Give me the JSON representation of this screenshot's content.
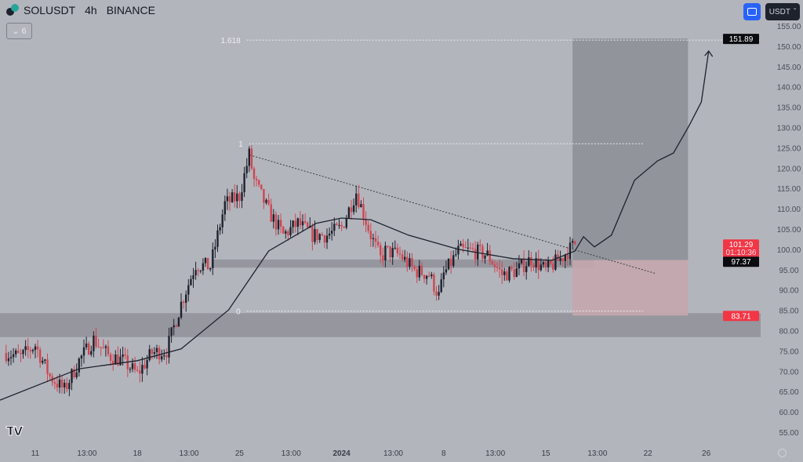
{
  "header": {
    "symbol": "SOLUSDT",
    "interval": "4h",
    "exchange": "BINANCE",
    "indicator_count": "6",
    "currency": "USDT"
  },
  "colors": {
    "background": "#b3b5bd",
    "up": "#1e222d",
    "down": "#d04550",
    "band": "#8f9199",
    "profit_zone": "#8c8e96",
    "loss_zone": "#c4a7ad",
    "label_red": "#f23645",
    "label_black": "#0b0c0f"
  },
  "chart_data": {
    "type": "candlestick",
    "title": "SOLUSDT 4h BINANCE",
    "ylim": [
      50,
      157
    ],
    "y_ticks": [
      "155.00",
      "150.00",
      "145.00",
      "140.00",
      "135.00",
      "130.00",
      "125.00",
      "120.00",
      "115.00",
      "110.00",
      "105.00",
      "100.00",
      "95.00",
      "90.00",
      "85.00",
      "80.00",
      "75.00",
      "70.00",
      "65.00",
      "60.00",
      "55.00"
    ],
    "x_ticks": [
      {
        "label": "11",
        "t": "2023-12-11T00:00"
      },
      {
        "label": "13:00",
        "t": "2023-12-14T13:00"
      },
      {
        "label": "18",
        "t": "2023-12-18T00:00"
      },
      {
        "label": "13:00",
        "t": "2023-12-21T13:00"
      },
      {
        "label": "25",
        "t": "2023-12-25T00:00"
      },
      {
        "label": "13:00",
        "t": "2023-12-28T13:00"
      },
      {
        "label": "2024",
        "t": "2024-01-01T00:00",
        "bold": true
      },
      {
        "label": "13:00",
        "t": "2024-01-04T13:00"
      },
      {
        "label": "8",
        "t": "2024-01-08T00:00"
      },
      {
        "label": "13:00",
        "t": "2024-01-11T13:00"
      },
      {
        "label": "15",
        "t": "2024-01-15T00:00"
      },
      {
        "label": "13:00",
        "t": "2024-01-18T13:00"
      },
      {
        "label": "22",
        "t": "2024-01-22T00:00"
      },
      {
        "label": "26",
        "t": "2024-01-26T00:00"
      }
    ],
    "daily_closes": [
      [
        "2023-12-09T00:00",
        74.5
      ],
      [
        "2023-12-10T00:00",
        73.5
      ],
      [
        "2023-12-11T00:00",
        76.4
      ],
      [
        "2023-12-12T00:00",
        68.7
      ],
      [
        "2023-12-13T00:00",
        65.4
      ],
      [
        "2023-12-14T00:00",
        72.6
      ],
      [
        "2023-12-15T00:00",
        77.8
      ],
      [
        "2023-12-16T00:00",
        73.9
      ],
      [
        "2023-12-17T00:00",
        72.6
      ],
      [
        "2023-12-18T00:00",
        69.3
      ],
      [
        "2023-12-19T00:00",
        74.5
      ],
      [
        "2023-12-20T00:00",
        75.1
      ],
      [
        "2023-12-21T00:00",
        86.7
      ],
      [
        "2023-12-22T00:00",
        96.3
      ],
      [
        "2023-12-23T00:00",
        95.7
      ],
      [
        "2023-12-24T00:00",
        111.2
      ],
      [
        "2023-12-25T00:00",
        113.1
      ],
      [
        "2023-12-25T16:00",
        123.3
      ],
      [
        "2023-12-26T00:00",
        117.0
      ],
      [
        "2023-12-27T00:00",
        109.3
      ],
      [
        "2023-12-28T00:00",
        103.5
      ],
      [
        "2023-12-29T00:00",
        106.4
      ],
      [
        "2023-12-30T00:00",
        103.5
      ],
      [
        "2023-12-31T00:00",
        103.5
      ],
      [
        "2024-01-01T00:00",
        105.4
      ],
      [
        "2024-01-02T00:00",
        114.1
      ],
      [
        "2024-01-03T00:00",
        103.5
      ],
      [
        "2024-01-03T16:00",
        97.7
      ],
      [
        "2024-01-04T00:00",
        99.6
      ],
      [
        "2024-01-05T00:00",
        98.6
      ],
      [
        "2024-01-06T00:00",
        94.8
      ],
      [
        "2024-01-07T00:00",
        93.8
      ],
      [
        "2024-01-07T16:00",
        88.5
      ],
      [
        "2024-01-08T00:00",
        93.8
      ],
      [
        "2024-01-09T00:00",
        99.6
      ],
      [
        "2024-01-10T00:00",
        99.6
      ],
      [
        "2024-01-11T00:00",
        98.6
      ],
      [
        "2024-01-12T00:00",
        93.8
      ],
      [
        "2024-01-13T00:00",
        94.8
      ],
      [
        "2024-01-14T00:00",
        97.7
      ],
      [
        "2024-01-15T00:00",
        94.8
      ],
      [
        "2024-01-16T00:00",
        97.7
      ],
      [
        "2024-01-17T00:00",
        101.29
      ]
    ],
    "moving_average": [
      [
        "2023-12-08T14:00",
        62.9
      ],
      [
        "2023-12-14T00:00",
        70.6
      ],
      [
        "2023-12-18T00:00",
        72.6
      ],
      [
        "2023-12-21T00:00",
        75.5
      ],
      [
        "2023-12-24T06:00",
        85.1
      ],
      [
        "2023-12-27T00:00",
        99.6
      ],
      [
        "2023-12-30T06:00",
        106.4
      ],
      [
        "2024-01-01T00:00",
        107.7
      ],
      [
        "2024-01-03T00:00",
        107.3
      ],
      [
        "2024-01-05T14:00",
        103.5
      ],
      [
        "2024-01-09T00:00",
        100.0
      ],
      [
        "2024-01-12T18:00",
        97.7
      ],
      [
        "2024-01-15T10:00",
        97.3
      ],
      [
        "2024-01-17T00:00",
        99.6
      ]
    ],
    "projection_path": [
      [
        "2024-01-17T00:00",
        99.6
      ],
      [
        "2024-01-17T14:00",
        103.1
      ],
      [
        "2024-01-18T08:00",
        100.6
      ],
      [
        "2024-01-19T12:00",
        103.5
      ],
      [
        "2024-01-21T02:00",
        117.0
      ],
      [
        "2024-01-22T16:00",
        121.8
      ],
      [
        "2024-01-23T18:00",
        123.7
      ],
      [
        "2024-01-24T20:00",
        130.5
      ],
      [
        "2024-01-25T16:00",
        136.3
      ],
      [
        "2024-01-26T04:00",
        148.8
      ]
    ],
    "fibonacci": [
      {
        "label": "1.618",
        "price": 151.5,
        "from": "2023-12-25T12:00",
        "to": "2024-01-30T00:00"
      },
      {
        "label": "1",
        "price": 126.0,
        "from": "2023-12-25T16:00",
        "to": "2024-01-21T16:00"
      },
      {
        "label": "0",
        "price": 84.8,
        "from": "2023-12-25T12:00",
        "to": "2024-01-21T16:00"
      }
    ],
    "trendline": {
      "from": [
        "2023-12-25T17:00",
        123.2
      ],
      "to": [
        "2024-01-22T14:00",
        94.0
      ]
    },
    "zones": [
      {
        "top": 97.5,
        "bottom": 95.5,
        "from": "2023-12-23T02:00",
        "to": "2024-01-18T08:00"
      },
      {
        "top": 84.3,
        "bottom": 78.4,
        "from": "2023-12-08T00:00",
        "to": "2024-02-05T00:00"
      }
    ],
    "long_position": {
      "from": "2024-01-16T20:00",
      "to": "2024-01-24T18:00",
      "target": 151.89,
      "entry": 97.37,
      "stop": 83.71
    },
    "price_labels": [
      {
        "text": "151.89",
        "price": 151.89,
        "style": "black"
      },
      {
        "text": "101.29",
        "sub": "01:10:36",
        "price": 101.29,
        "style": "red"
      },
      {
        "text": "97.37",
        "price": 97.37,
        "style": "black"
      },
      {
        "text": "83.71",
        "price": 83.71,
        "style": "red"
      }
    ]
  }
}
